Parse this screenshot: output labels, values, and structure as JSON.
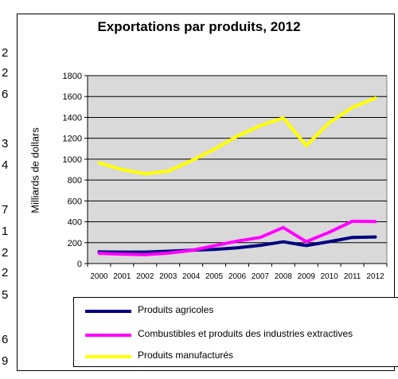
{
  "sidebar_digits": [
    "2",
    "2",
    "6",
    "3",
    "4",
    "7",
    "1",
    "2",
    "2",
    "5",
    "6",
    "9"
  ],
  "chart_data": {
    "type": "line",
    "title": "Exportations par produits, 2012",
    "ylabel": "Milliards de dollars",
    "xlabel": "",
    "categories": [
      "2000",
      "2001",
      "2002",
      "2003",
      "2004",
      "2005",
      "2006",
      "2007",
      "2008",
      "2009",
      "2010",
      "2011",
      "2012"
    ],
    "ylim": [
      0,
      1800
    ],
    "yticks": [
      "0",
      "200",
      "400",
      "600",
      "800",
      "1000",
      "1200",
      "1400",
      "1600",
      "1800"
    ],
    "grid": true,
    "legend_position": "bottom",
    "plot_background": "#d9d9d9",
    "series": [
      {
        "name": "Produits agricoles",
        "color": "#000080",
        "values": [
          112,
          110,
          110,
          118,
          128,
          135,
          150,
          175,
          208,
          172,
          210,
          250,
          255
        ]
      },
      {
        "name": "Combustibles et produits des industries extractives",
        "color": "#ff00ff",
        "values": [
          98,
          90,
          85,
          100,
          125,
          170,
          215,
          250,
          345,
          210,
          300,
          405,
          402
        ]
      },
      {
        "name": "Produits manufacturés",
        "color": "#ffff00",
        "values": [
          965,
          900,
          860,
          885,
          985,
          1095,
          1220,
          1320,
          1395,
          1130,
          1350,
          1495,
          1585
        ]
      }
    ]
  }
}
